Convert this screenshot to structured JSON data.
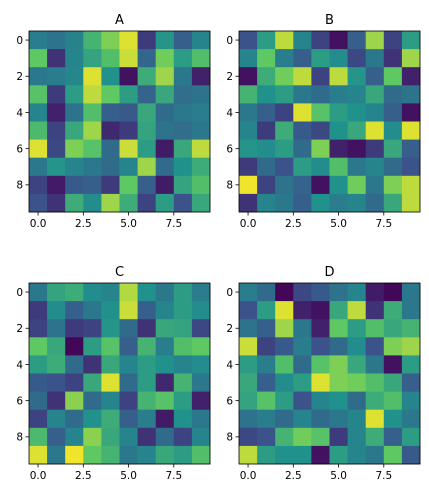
{
  "chart_data": [
    {
      "type": "heatmap",
      "title": "A",
      "x_ticks": [
        "0.0",
        "2.5",
        "5.0",
        "7.5"
      ],
      "y_ticks": [
        "0",
        "2",
        "4",
        "6",
        "8"
      ],
      "colormap": "viridis",
      "values_range": [
        0,
        1
      ],
      "values": [
        [
          0.42,
          0.38,
          0.44,
          0.65,
          0.8,
          0.95,
          0.18,
          0.52,
          0.3,
          0.45
        ],
        [
          0.75,
          0.15,
          0.45,
          0.58,
          0.7,
          0.92,
          0.33,
          0.78,
          0.55,
          0.7
        ],
        [
          0.4,
          0.42,
          0.46,
          0.95,
          0.5,
          0.05,
          0.62,
          0.85,
          0.4,
          0.1
        ],
        [
          0.72,
          0.18,
          0.55,
          0.9,
          0.75,
          0.55,
          0.32,
          0.6,
          0.36,
          0.38
        ],
        [
          0.45,
          0.1,
          0.38,
          0.7,
          0.3,
          0.28,
          0.6,
          0.35,
          0.4,
          0.42
        ],
        [
          0.68,
          0.2,
          0.6,
          0.85,
          0.12,
          0.18,
          0.58,
          0.38,
          0.36,
          0.4
        ],
        [
          0.95,
          0.22,
          0.8,
          0.72,
          0.35,
          0.92,
          0.55,
          0.08,
          0.6,
          0.9
        ],
        [
          0.4,
          0.52,
          0.45,
          0.4,
          0.35,
          0.45,
          0.85,
          0.35,
          0.5,
          0.62
        ],
        [
          0.2,
          0.08,
          0.28,
          0.3,
          0.18,
          0.75,
          0.3,
          0.08,
          0.58,
          0.7
        ],
        [
          0.25,
          0.15,
          0.62,
          0.48,
          0.85,
          0.62,
          0.2,
          0.55,
          0.25,
          0.6
        ]
      ]
    },
    {
      "type": "heatmap",
      "title": "B",
      "x_ticks": [
        "0.0",
        "2.5",
        "5.0",
        "7.5"
      ],
      "y_ticks": [
        "0",
        "2",
        "4",
        "6",
        "8"
      ],
      "colormap": "viridis",
      "values_range": [
        0,
        1
      ],
      "values": [
        [
          0.25,
          0.55,
          0.9,
          0.45,
          0.2,
          0.05,
          0.3,
          0.85,
          0.2,
          0.55
        ],
        [
          0.45,
          0.75,
          0.42,
          0.3,
          0.55,
          0.48,
          0.22,
          0.4,
          0.15,
          0.85
        ],
        [
          0.05,
          0.62,
          0.78,
          0.9,
          0.2,
          0.9,
          0.52,
          0.3,
          0.75,
          0.1
        ],
        [
          0.65,
          0.5,
          0.55,
          0.4,
          0.35,
          0.42,
          0.45,
          0.6,
          0.35,
          0.38
        ],
        [
          0.4,
          0.3,
          0.2,
          0.95,
          0.72,
          0.55,
          0.5,
          0.45,
          0.3,
          0.05
        ],
        [
          0.45,
          0.18,
          0.62,
          0.28,
          0.22,
          0.5,
          0.6,
          0.95,
          0.48,
          0.95
        ],
        [
          0.52,
          0.48,
          0.55,
          0.35,
          0.8,
          0.1,
          0.05,
          0.18,
          0.6,
          0.3
        ],
        [
          0.18,
          0.35,
          0.25,
          0.55,
          0.48,
          0.7,
          0.4,
          0.45,
          0.35,
          0.25
        ],
        [
          0.98,
          0.2,
          0.38,
          0.32,
          0.05,
          0.5,
          0.78,
          0.4,
          0.8,
          0.9
        ],
        [
          0.15,
          0.45,
          0.4,
          0.3,
          0.5,
          0.42,
          0.45,
          0.35,
          0.6,
          0.9
        ]
      ]
    },
    {
      "type": "heatmap",
      "title": "C",
      "x_ticks": [
        "0.0",
        "2.5",
        "5.0",
        "7.5"
      ],
      "y_ticks": [
        "0",
        "2",
        "4",
        "6",
        "8"
      ],
      "colormap": "viridis",
      "values_range": [
        0,
        1
      ],
      "values": [
        [
          0.4,
          0.58,
          0.62,
          0.48,
          0.45,
          0.88,
          0.5,
          0.4,
          0.55,
          0.42
        ],
        [
          0.18,
          0.48,
          0.3,
          0.4,
          0.5,
          0.92,
          0.3,
          0.45,
          0.55,
          0.48
        ],
        [
          0.2,
          0.38,
          0.18,
          0.2,
          0.52,
          0.35,
          0.15,
          0.6,
          0.58,
          0.22
        ],
        [
          0.75,
          0.6,
          0.02,
          0.55,
          0.72,
          0.3,
          0.65,
          0.42,
          0.7,
          0.75
        ],
        [
          0.55,
          0.62,
          0.35,
          0.15,
          0.6,
          0.45,
          0.55,
          0.5,
          0.45,
          0.48
        ],
        [
          0.28,
          0.25,
          0.2,
          0.6,
          0.95,
          0.35,
          0.55,
          0.12,
          0.65,
          0.4
        ],
        [
          0.35,
          0.15,
          0.82,
          0.35,
          0.45,
          0.2,
          0.65,
          0.72,
          0.55,
          0.1
        ],
        [
          0.2,
          0.45,
          0.35,
          0.5,
          0.62,
          0.3,
          0.42,
          0.08,
          0.5,
          0.4
        ],
        [
          0.68,
          0.3,
          0.45,
          0.82,
          0.6,
          0.45,
          0.15,
          0.35,
          0.2,
          0.45
        ],
        [
          0.95,
          0.4,
          0.98,
          0.75,
          0.65,
          0.4,
          0.45,
          0.6,
          0.55,
          0.7
        ]
      ]
    },
    {
      "type": "heatmap",
      "title": "D",
      "x_ticks": [
        "0.0",
        "2.5",
        "5.0",
        "7.5"
      ],
      "y_ticks": [
        "0",
        "2",
        "4",
        "6",
        "8"
      ],
      "colormap": "viridis",
      "values_range": [
        0,
        1
      ],
      "values": [
        [
          0.42,
          0.35,
          0.02,
          0.22,
          0.28,
          0.38,
          0.45,
          0.08,
          0.02,
          0.4
        ],
        [
          0.25,
          0.55,
          0.95,
          0.1,
          0.05,
          0.6,
          0.9,
          0.15,
          0.62,
          0.4
        ],
        [
          0.38,
          0.3,
          0.85,
          0.4,
          0.1,
          0.75,
          0.55,
          0.7,
          0.6,
          0.65
        ],
        [
          0.92,
          0.2,
          0.28,
          0.42,
          0.25,
          0.35,
          0.48,
          0.25,
          0.8,
          0.85
        ],
        [
          0.55,
          0.42,
          0.7,
          0.35,
          0.72,
          0.8,
          0.6,
          0.4,
          0.05,
          0.55
        ],
        [
          0.6,
          0.3,
          0.48,
          0.55,
          0.95,
          0.8,
          0.78,
          0.7,
          0.6,
          0.3
        ],
        [
          0.58,
          0.72,
          0.55,
          0.25,
          0.45,
          0.5,
          0.35,
          0.62,
          0.7,
          0.45
        ],
        [
          0.38,
          0.42,
          0.35,
          0.45,
          0.35,
          0.4,
          0.45,
          0.95,
          0.5,
          0.4
        ],
        [
          0.22,
          0.25,
          0.65,
          0.78,
          0.72,
          0.18,
          0.45,
          0.62,
          0.3,
          0.55
        ],
        [
          0.9,
          0.55,
          0.5,
          0.5,
          0.05,
          0.55,
          0.45,
          0.4,
          0.75,
          0.28
        ]
      ]
    }
  ]
}
